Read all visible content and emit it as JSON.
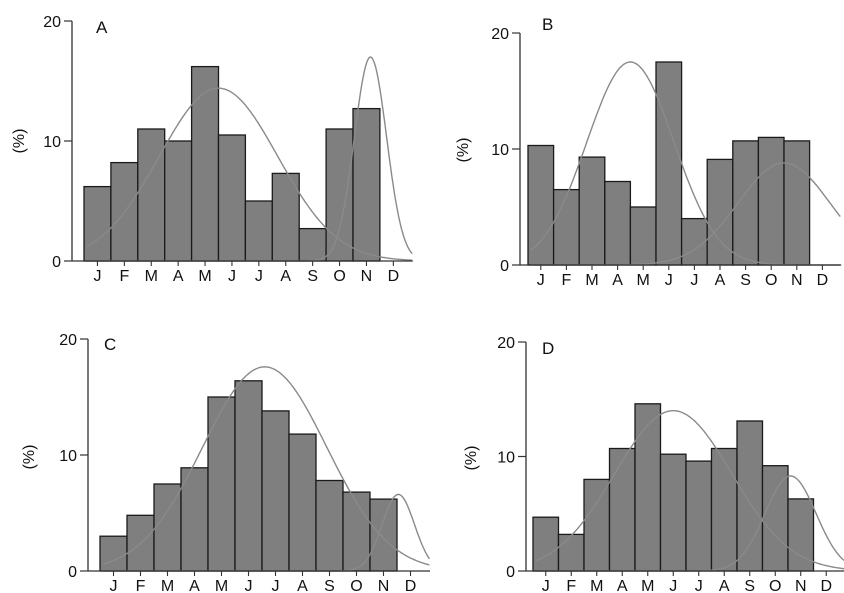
{
  "chart_data": [
    {
      "type": "bar",
      "panel_label": "A",
      "ylabel": "(%)",
      "ylim": [
        0,
        20
      ],
      "yticks": [
        0,
        10,
        20
      ],
      "categories": [
        "J",
        "F",
        "M",
        "A",
        "M",
        "J",
        "J",
        "A",
        "S",
        "O",
        "N",
        "D"
      ],
      "values": [
        6.2,
        8.2,
        11.0,
        10.0,
        16.2,
        10.5,
        5.0,
        7.3,
        2.7,
        11.0,
        12.7,
        0
      ],
      "curves": [
        {
          "mean": 4.5,
          "sd": 2.2,
          "peak": 14.4
        },
        {
          "mean": 10.15,
          "sd": 0.6,
          "peak": 17.0
        }
      ]
    },
    {
      "type": "bar",
      "panel_label": "B",
      "ylabel": "(%)",
      "ylim": [
        0,
        20
      ],
      "yticks": [
        0,
        10,
        20
      ],
      "categories": [
        "J",
        "F",
        "M",
        "A",
        "M",
        "J",
        "J",
        "A",
        "S",
        "O",
        "N",
        "D"
      ],
      "values": [
        10.3,
        6.5,
        9.3,
        7.2,
        5.0,
        17.5,
        4.0,
        9.1,
        10.7,
        11.0,
        10.7,
        0
      ],
      "curves": [
        {
          "mean": 3.5,
          "sd": 1.7,
          "peak": 17.5
        },
        {
          "mean": 9.5,
          "sd": 1.8,
          "peak": 8.8
        }
      ]
    },
    {
      "type": "bar",
      "panel_label": "C",
      "ylabel": "(%)",
      "ylim": [
        0,
        20
      ],
      "yticks": [
        0,
        10,
        20
      ],
      "categories": [
        "J",
        "F",
        "M",
        "A",
        "M",
        "J",
        "J",
        "A",
        "S",
        "O",
        "N",
        "D"
      ],
      "values": [
        3.0,
        4.8,
        7.5,
        8.9,
        15.0,
        16.4,
        13.8,
        11.8,
        7.8,
        6.8,
        6.2,
        0
      ],
      "curves": [
        {
          "mean": 5.6,
          "sd": 2.3,
          "peak": 17.6
        },
        {
          "mean": 10.55,
          "sd": 0.6,
          "peak": 6.6
        }
      ]
    },
    {
      "type": "bar",
      "panel_label": "D",
      "ylabel": "(%)",
      "ylim": [
        0,
        20
      ],
      "yticks": [
        0,
        10,
        20
      ],
      "categories": [
        "J",
        "F",
        "M",
        "A",
        "M",
        "J",
        "J",
        "A",
        "S",
        "O",
        "N",
        "D"
      ],
      "values": [
        4.7,
        3.2,
        8.0,
        10.7,
        14.6,
        10.2,
        9.6,
        10.7,
        13.1,
        9.2,
        6.3,
        0
      ],
      "curves": [
        {
          "mean": 5.0,
          "sd": 2.3,
          "peak": 14.0
        },
        {
          "mean": 9.6,
          "sd": 1.0,
          "peak": 8.3
        }
      ]
    }
  ],
  "colors": {
    "bar_fill": "#7f7f7f",
    "bar_stroke": "#1a1a1a",
    "axis": "#333333",
    "curve": "#8a8a8a"
  }
}
